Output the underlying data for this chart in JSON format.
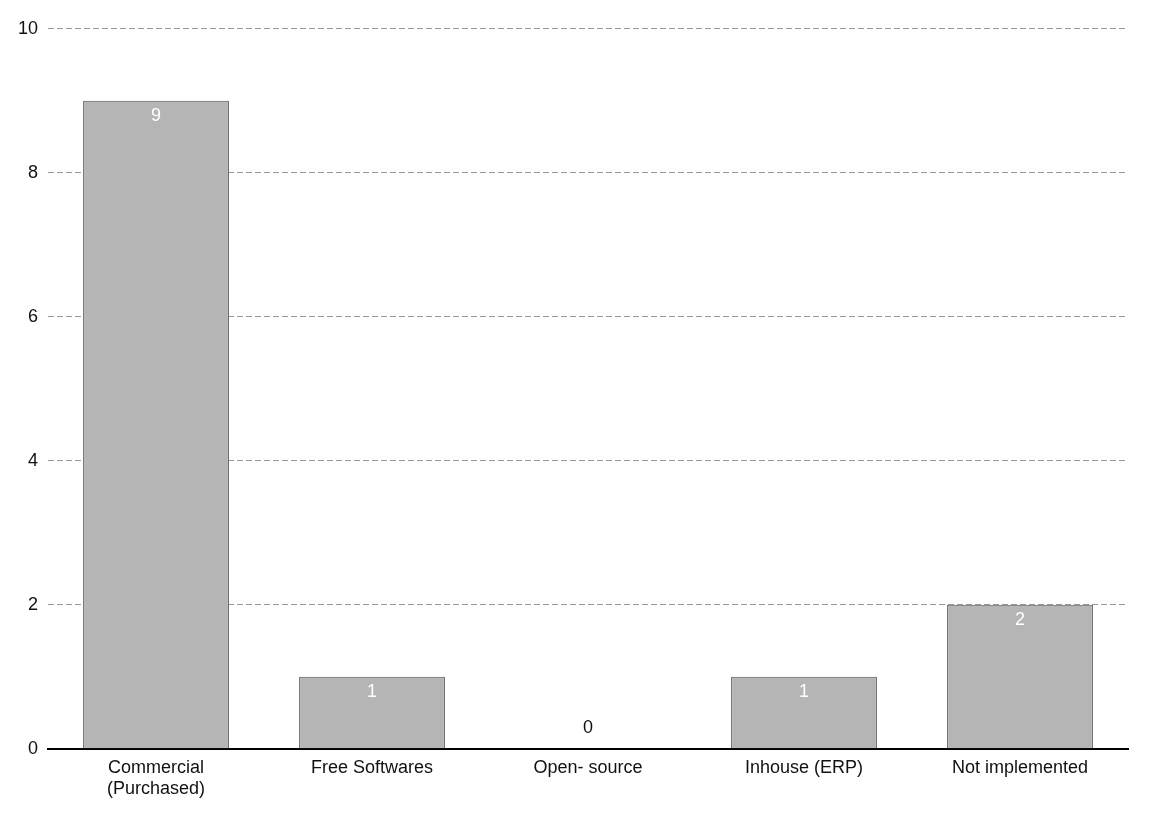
{
  "chart_data": {
    "type": "bar",
    "categories": [
      "Commercial\n(Purchased)",
      "Free Softwares",
      "Open- source",
      "Inhouse (ERP)",
      "Not implemented"
    ],
    "values": [
      9,
      1,
      0,
      1,
      2
    ],
    "color": "#b5b5b5",
    "ylim": [
      0,
      10
    ],
    "yticks": [
      0,
      2,
      4,
      6,
      8,
      10
    ],
    "grid": "y",
    "data_labels": true,
    "legend": false
  }
}
